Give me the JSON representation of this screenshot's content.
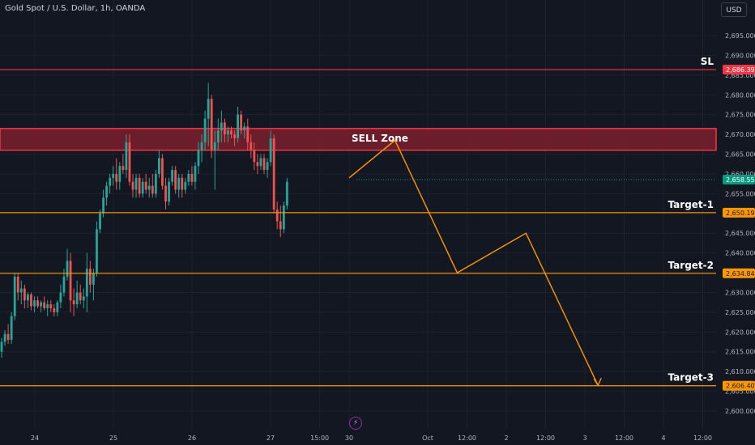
{
  "header": {
    "symbol_title": "Gold Spot / U.S. Dollar, 1h, OANDA",
    "currency_button": "USD"
  },
  "colors": {
    "background": "#131722",
    "grid": "#1e222d",
    "axis_text": "#b2b5be",
    "up_candle": "#26a69a",
    "down_candle": "#ef5350",
    "sell_zone_fill": "#7a1f2b",
    "sell_zone_border": "#f23645",
    "target_line": "#ff9800",
    "last_price": "#089981"
  },
  "chart_data": {
    "type": "candlestick",
    "price_axis": {
      "ticks": [
        2600,
        2605,
        2610,
        2615,
        2620,
        2625,
        2630,
        2635,
        2640,
        2645,
        2650,
        2655,
        2660,
        2665,
        2670,
        2675,
        2680,
        2685,
        2690,
        2695
      ],
      "tick_labels": [
        "2,600.000",
        "2,605.000",
        "2,610.000",
        "2,615.000",
        "2,620.000",
        "2,625.000",
        "2,630.000",
        "2,635.000",
        "2,640.000",
        "2,645.000",
        "2,650.000",
        "2,655.000",
        "2,660.000",
        "2,665.000",
        "2,670.000",
        "2,675.000",
        "2,680.000",
        "2,685.000",
        "2,690.000",
        "2,695.000"
      ]
    },
    "time_axis": {
      "labels": [
        "24",
        "25",
        "26",
        "27",
        "15:00",
        "30",
        "Oct",
        "12:00",
        "2",
        "12:00",
        "3",
        "12:00",
        "4",
        "12:00"
      ],
      "positions": [
        24,
        48,
        72,
        96,
        111,
        120,
        144,
        156,
        168,
        180,
        192,
        204,
        216,
        228
      ]
    },
    "candles": [
      [
        2615,
        2618.5,
        2613.5,
        2617.5
      ],
      [
        2617.5,
        2620.5,
        2616.5,
        2619.5
      ],
      [
        2619.5,
        2622,
        2617,
        2618
      ],
      [
        2618,
        2625,
        2617,
        2624
      ],
      [
        2624,
        2635,
        2623,
        2634
      ],
      [
        2634,
        2635,
        2628,
        2630
      ],
      [
        2630,
        2633,
        2627,
        2631
      ],
      [
        2631,
        2632,
        2626,
        2628
      ],
      [
        2628,
        2630,
        2626,
        2629.5
      ],
      [
        2629.5,
        2630,
        2625.5,
        2626.5
      ],
      [
        2626.5,
        2629,
        2625,
        2628
      ],
      [
        2628,
        2629,
        2626,
        2626.5
      ],
      [
        2626.5,
        2628,
        2625,
        2627.5
      ],
      [
        2627.5,
        2629,
        2625.5,
        2626
      ],
      [
        2626,
        2628,
        2624,
        2627
      ],
      [
        2627,
        2628,
        2625,
        2626
      ],
      [
        2626,
        2627,
        2624,
        2625
      ],
      [
        2625,
        2628,
        2624,
        2627.5
      ],
      [
        2627.5,
        2632,
        2626,
        2630
      ],
      [
        2630,
        2636,
        2629,
        2634
      ],
      [
        2634,
        2641,
        2633,
        2638
      ],
      [
        2638,
        2640,
        2625,
        2628
      ],
      [
        2628,
        2631,
        2624,
        2627
      ],
      [
        2627,
        2633,
        2626,
        2630
      ],
      [
        2630,
        2632,
        2627,
        2628
      ],
      [
        2628,
        2631,
        2626,
        2629
      ],
      [
        2629,
        2640,
        2625,
        2636
      ],
      [
        2636,
        2638,
        2630,
        2632
      ],
      [
        2632,
        2636,
        2628,
        2635
      ],
      [
        2635,
        2648,
        2634,
        2646
      ],
      [
        2646,
        2651,
        2645,
        2650
      ],
      [
        2650,
        2656,
        2649,
        2654
      ],
      [
        2654,
        2658,
        2652,
        2657
      ],
      [
        2657,
        2660,
        2655,
        2659
      ],
      [
        2659,
        2662,
        2657,
        2660
      ],
      [
        2660,
        2664,
        2656,
        2658
      ],
      [
        2658,
        2663,
        2656,
        2662
      ],
      [
        2662,
        2665,
        2660,
        2661
      ],
      [
        2661,
        2670,
        2659,
        2668
      ],
      [
        2668,
        2670,
        2657,
        2658
      ],
      [
        2658,
        2660,
        2654,
        2656
      ],
      [
        2656,
        2660,
        2654,
        2659
      ],
      [
        2659,
        2660,
        2654,
        2655
      ],
      [
        2655,
        2659,
        2654,
        2658
      ],
      [
        2658,
        2660,
        2655,
        2656
      ],
      [
        2656,
        2659,
        2654,
        2657
      ],
      [
        2657,
        2660,
        2654,
        2655
      ],
      [
        2655,
        2661,
        2654,
        2660
      ],
      [
        2660,
        2666,
        2659,
        2664
      ],
      [
        2664,
        2665,
        2656,
        2657
      ],
      [
        2657,
        2659,
        2651,
        2653
      ],
      [
        2653,
        2659,
        2652,
        2658
      ],
      [
        2658,
        2662,
        2657,
        2661
      ],
      [
        2661,
        2662,
        2655,
        2656
      ],
      [
        2656,
        2660,
        2654,
        2659
      ],
      [
        2659,
        2660,
        2654,
        2656
      ],
      [
        2656,
        2659,
        2655,
        2658
      ],
      [
        2658,
        2661,
        2657,
        2660
      ],
      [
        2660,
        2662,
        2657,
        2658
      ],
      [
        2658,
        2663,
        2656,
        2662
      ],
      [
        2662,
        2668,
        2660,
        2666
      ],
      [
        2666,
        2670,
        2663,
        2668
      ],
      [
        2668,
        2676,
        2666,
        2674
      ],
      [
        2674,
        2683,
        2667,
        2679
      ],
      [
        2679,
        2680,
        2664,
        2666
      ],
      [
        2666,
        2671,
        2656,
        2668
      ],
      [
        2668,
        2674,
        2666,
        2671
      ],
      [
        2671,
        2676,
        2668,
        2673
      ],
      [
        2673,
        2674,
        2668,
        2670
      ],
      [
        2670,
        2672,
        2668,
        2671
      ],
      [
        2671,
        2672,
        2669,
        2670
      ],
      [
        2670,
        2671,
        2667,
        2669
      ],
      [
        2669,
        2677,
        2668,
        2675
      ],
      [
        2675,
        2676,
        2670,
        2671
      ],
      [
        2671,
        2673,
        2669,
        2672
      ],
      [
        2672,
        2674,
        2666,
        2668
      ],
      [
        2668,
        2670,
        2664,
        2666
      ],
      [
        2666,
        2668,
        2661,
        2663
      ],
      [
        2663,
        2665,
        2660,
        2662
      ],
      [
        2662,
        2665,
        2661,
        2664
      ],
      [
        2664,
        2665,
        2660,
        2661
      ],
      [
        2661,
        2664,
        2659,
        2663
      ],
      [
        2663,
        2671,
        2662,
        2669
      ],
      [
        2669,
        2670,
        2650,
        2651
      ],
      [
        2651,
        2653,
        2646,
        2648
      ],
      [
        2648,
        2652,
        2644,
        2646
      ],
      [
        2646,
        2653,
        2645,
        2652
      ],
      [
        2652,
        2659,
        2651,
        2658
      ]
    ],
    "levels": [
      {
        "name": "SL",
        "label": "SL",
        "price": 2686.39,
        "price_label": "2,686.390",
        "color": "#f23645"
      },
      {
        "name": "target-1",
        "label": "Target-1",
        "price": 2650.197,
        "price_label": "2,650.197",
        "color": "#ff9800"
      },
      {
        "name": "target-2",
        "label": "Target-2",
        "price": 2634.847,
        "price_label": "2,634.847",
        "color": "#ff9800"
      },
      {
        "name": "target-3",
        "label": "Target-3",
        "price": 2606.4,
        "price_label": "2,606.400",
        "color": "#ff9800"
      }
    ],
    "sell_zone": {
      "label": "SELL Zone",
      "from": 2666.0,
      "to": 2671.5
    },
    "last_price": {
      "price": 2658.55,
      "label": "2,658.550"
    },
    "projection": [
      [
        120,
        2659
      ],
      [
        134,
        2668.5
      ],
      [
        153,
        2635
      ],
      [
        174,
        2645
      ],
      [
        196,
        2606.5
      ]
    ]
  }
}
